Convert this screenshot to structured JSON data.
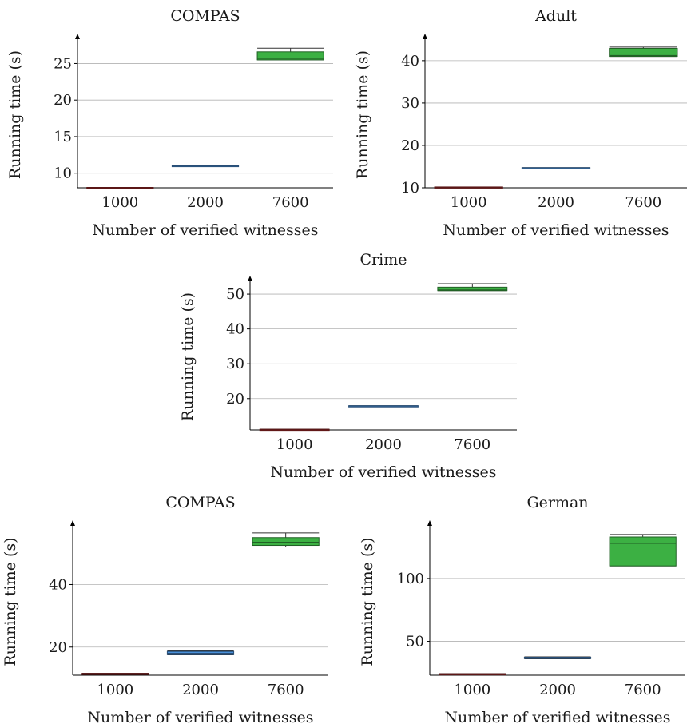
{
  "colors": {
    "series_1000": "#a52a2a",
    "series_2000": "#4a90d9",
    "series_7600": "#3cb043",
    "grid": "#b3b3b3",
    "axis": "#000000"
  },
  "chart_data": [
    {
      "type": "box",
      "title": "COMPAS",
      "xlabel": "Number of verified witnesses",
      "ylabel": "Running time (s)",
      "categories": [
        "1000",
        "2000",
        "7600"
      ],
      "ylim": [
        8,
        28
      ],
      "yticks": [
        10,
        15,
        20,
        25
      ],
      "grid": true,
      "boxes": [
        {
          "category": "1000",
          "min": 8.0,
          "q1": 8.0,
          "median": 8.0,
          "q3": 8.05,
          "max": 8.05
        },
        {
          "category": "2000",
          "min": 10.95,
          "q1": 10.95,
          "median": 11.0,
          "q3": 11.05,
          "max": 11.05
        },
        {
          "category": "7600",
          "min": 25.5,
          "q1": 25.5,
          "median": 25.7,
          "q3": 26.6,
          "max": 27.1
        }
      ]
    },
    {
      "type": "box",
      "title": "Adult",
      "xlabel": "Number of verified witnesses",
      "ylabel": "Running time (s)",
      "categories": [
        "1000",
        "2000",
        "7600"
      ],
      "ylim": [
        10,
        44.5
      ],
      "yticks": [
        10,
        20,
        30,
        40
      ],
      "grid": true,
      "boxes": [
        {
          "category": "1000",
          "min": 10.0,
          "q1": 10.05,
          "median": 10.1,
          "q3": 10.2,
          "max": 10.2
        },
        {
          "category": "2000",
          "min": 14.6,
          "q1": 14.65,
          "median": 14.7,
          "q3": 14.75,
          "max": 14.75
        },
        {
          "category": "7600",
          "min": 41.0,
          "q1": 41.0,
          "median": 41.2,
          "q3": 42.9,
          "max": 43.2
        }
      ]
    },
    {
      "type": "box",
      "title": "Crime",
      "xlabel": "Number of verified witnesses",
      "ylabel": "Running time (s)",
      "categories": [
        "1000",
        "2000",
        "7600"
      ],
      "ylim": [
        11,
        53
      ],
      "yticks": [
        20,
        30,
        40,
        50
      ],
      "grid": true,
      "boxes": [
        {
          "category": "1000",
          "min": 11.0,
          "q1": 11.0,
          "median": 11.1,
          "q3": 11.2,
          "max": 11.2
        },
        {
          "category": "2000",
          "min": 17.8,
          "q1": 17.85,
          "median": 17.9,
          "q3": 17.95,
          "max": 17.95
        },
        {
          "category": "7600",
          "min": 51.0,
          "q1": 51.0,
          "median": 51.2,
          "q3": 52.0,
          "max": 53.0
        }
      ]
    },
    {
      "type": "box",
      "title": "COMPAS",
      "xlabel": "Number of verified witnesses",
      "ylabel": "Running time (s)",
      "categories": [
        "1000",
        "2000",
        "7600"
      ],
      "ylim": [
        11,
        58
      ],
      "yticks": [
        20,
        40
      ],
      "grid": true,
      "boxes": [
        {
          "category": "1000",
          "min": 11.3,
          "q1": 11.3,
          "median": 11.4,
          "q3": 11.6,
          "max": 11.6
        },
        {
          "category": "2000",
          "min": 17.5,
          "q1": 17.6,
          "median": 18.0,
          "q3": 18.6,
          "max": 18.8
        },
        {
          "category": "7600",
          "min": 52.0,
          "q1": 52.5,
          "median": 53.5,
          "q3": 55.0,
          "max": 56.5
        }
      ]
    },
    {
      "type": "box",
      "title": "German",
      "xlabel": "Number of verified witnesses",
      "ylabel": "Running time (s)",
      "categories": [
        "1000",
        "2000",
        "7600"
      ],
      "ylim": [
        23,
        140
      ],
      "yticks": [
        50,
        100
      ],
      "grid": true,
      "boxes": [
        {
          "category": "1000",
          "min": 23.3,
          "q1": 23.5,
          "median": 23.8,
          "q3": 24.2,
          "max": 24.3
        },
        {
          "category": "2000",
          "min": 36.0,
          "q1": 36.3,
          "median": 36.8,
          "q3": 37.3,
          "max": 37.6
        },
        {
          "category": "7600",
          "min": 110.0,
          "q1": 110.0,
          "median": 128.0,
          "q3": 133.0,
          "max": 135.0
        }
      ]
    }
  ]
}
